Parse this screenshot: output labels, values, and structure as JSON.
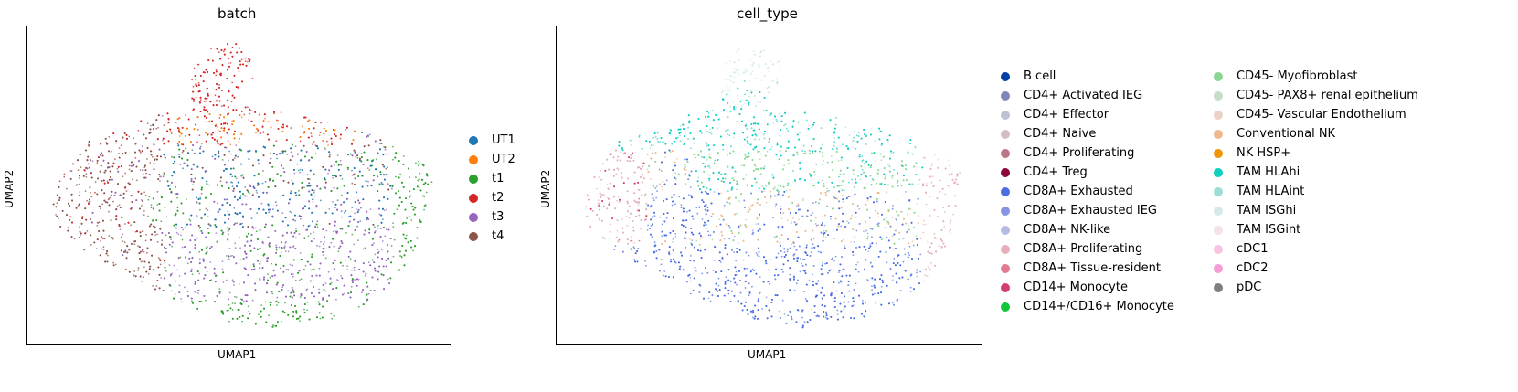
{
  "chart_data": [
    {
      "type": "scatter",
      "title": "batch",
      "xlabel": "UMAP1",
      "ylabel": "UMAP2",
      "grid": false,
      "legend_position": "right",
      "categories": [
        "UT1",
        "UT2",
        "t1",
        "t2",
        "t3",
        "t4"
      ],
      "colors": [
        "#1f77b4",
        "#ff7f0e",
        "#2ca02c",
        "#d62728",
        "#9467bd",
        "#8c564b"
      ],
      "cluster_regions": [
        {
          "category": "t2",
          "region": "top lobe and upper band"
        },
        {
          "category": "UT2",
          "region": "upper band and small spike at left"
        },
        {
          "category": "UT1",
          "region": "center band"
        },
        {
          "category": "t1",
          "region": "right edge, bottom edge, left spot"
        },
        {
          "category": "t3",
          "region": "lower body"
        },
        {
          "category": "t4",
          "region": "left body"
        }
      ]
    },
    {
      "type": "scatter",
      "title": "cell_type",
      "xlabel": "UMAP1",
      "ylabel": "UMAP2",
      "grid": false,
      "legend_position": "right, two columns",
      "categories": [
        "B cell",
        "CD4+ Activated IEG",
        "CD4+ Effector",
        "CD4+ Naive",
        "CD4+ Proliferating",
        "CD4+ Treg",
        "CD8A+ Exhausted",
        "CD8A+ Exhausted IEG",
        "CD8A+ NK-like",
        "CD8A+ Proliferating",
        "CD8A+ Tissue-resident",
        "CD14+ Monocyte",
        "CD14+/CD16+ Monocyte",
        "CD45- Myofibroblast",
        "CD45- PAX8+ renal epithelium",
        "CD45- Vascular Endothelium",
        "Conventional NK",
        "NK HSP+",
        "TAM HLAhi",
        "TAM HLAint",
        "TAM ISGhi",
        "TAM ISGint",
        "cDC1",
        "cDC2",
        "pDC"
      ],
      "colors": [
        "#023fa5",
        "#7d87b9",
        "#bec1d4",
        "#d6bcc0",
        "#bb7784",
        "#8e063b",
        "#4a6fe3",
        "#8595e1",
        "#b5bbe3",
        "#e6afb9",
        "#e07b91",
        "#d33f6a",
        "#11c638",
        "#8dd593",
        "#c6dec7",
        "#ead3c6",
        "#f0b98d",
        "#ef9708",
        "#0fcfc0",
        "#9cded6",
        "#d5eae7",
        "#f3e1eb",
        "#f6c4e1",
        "#f79cd4",
        "#7f7f7f"
      ],
      "cluster_regions": [
        {
          "category": "TAM HLAhi",
          "region": "upper band"
        },
        {
          "category": "CD45- Myofibroblast",
          "region": "middle band"
        },
        {
          "category": "CD8A+ Exhausted",
          "region": "lower body and left spot"
        },
        {
          "category": "TAM ISGhi",
          "region": "top lobe"
        },
        {
          "category": "CD8A+ Proliferating",
          "region": "left body and right edge"
        },
        {
          "category": "Conventional NK",
          "region": "lower middle band"
        }
      ]
    }
  ]
}
